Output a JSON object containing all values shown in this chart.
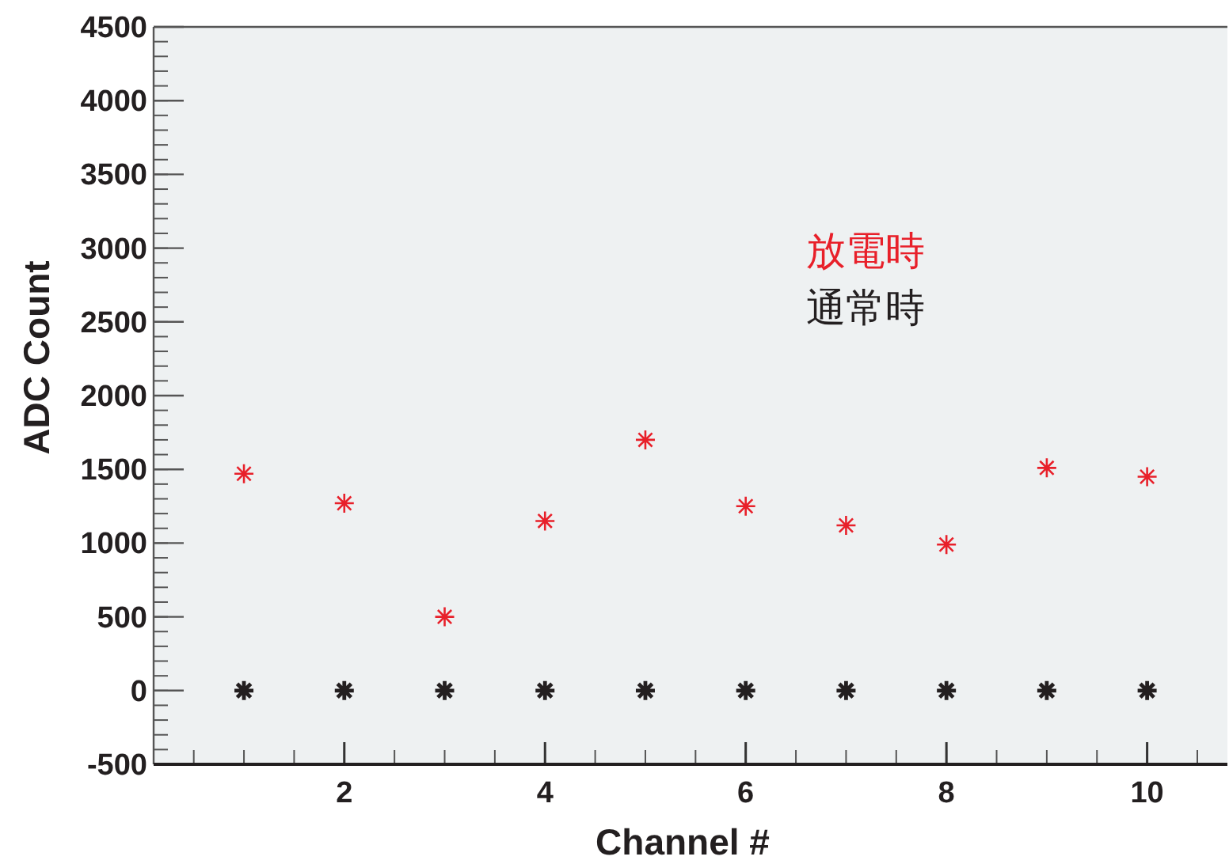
{
  "chart_data": {
    "type": "scatter",
    "xlabel": "Channel #",
    "ylabel": "ADC Count",
    "x": [
      1,
      2,
      3,
      4,
      5,
      6,
      7,
      8,
      9,
      10
    ],
    "series": [
      {
        "name": "放電時",
        "color": "#e8202a",
        "values": [
          1470,
          1270,
          500,
          1150,
          1700,
          1250,
          1120,
          990,
          1510,
          1450
        ]
      },
      {
        "name": "通常時",
        "color": "#231f20",
        "values": [
          0,
          0,
          0,
          0,
          0,
          0,
          0,
          0,
          0,
          0
        ]
      }
    ],
    "xlim": [
      0.1,
      10.8
    ],
    "ylim": [
      -500,
      4500
    ],
    "xticks": [
      2,
      4,
      6,
      8,
      10
    ],
    "yticks": [
      -500,
      0,
      500,
      1000,
      1500,
      2000,
      2500,
      3000,
      3500,
      4000,
      4500
    ],
    "marker": "cross",
    "grid": false,
    "legend": "top right"
  }
}
